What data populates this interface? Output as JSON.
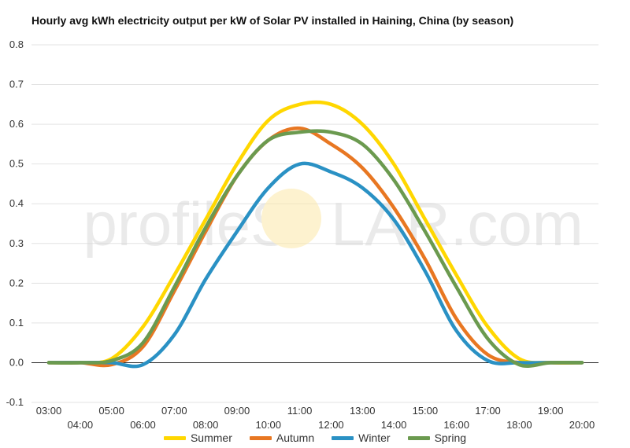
{
  "chart_data": {
    "type": "line",
    "title": "Hourly avg kWh electricity output per kW of Solar PV installed in Haining, China (by season)",
    "xlabel": "",
    "ylabel": "",
    "ylim": [
      -0.1,
      0.8
    ],
    "yticks": [
      "-0.1",
      "0.0",
      "0.1",
      "0.2",
      "0.3",
      "0.4",
      "0.5",
      "0.6",
      "0.7",
      "0.8"
    ],
    "xticks_top": [
      "03:00",
      "05:00",
      "07:00",
      "09:00",
      "11:00",
      "13:00",
      "15:00",
      "17:00",
      "19:00"
    ],
    "xticks_bottom": [
      "04:00",
      "06:00",
      "08:00",
      "10:00",
      "12:00",
      "14:00",
      "16:00",
      "18:00",
      "20:00"
    ],
    "x": [
      "03:00",
      "04:00",
      "05:00",
      "06:00",
      "07:00",
      "08:00",
      "09:00",
      "10:00",
      "11:00",
      "12:00",
      "13:00",
      "14:00",
      "15:00",
      "16:00",
      "17:00",
      "18:00",
      "19:00",
      "20:00"
    ],
    "grid": true,
    "legend_position": "bottom",
    "series": [
      {
        "name": "Summer",
        "color": "#FFD700",
        "values": [
          0.0,
          0.0,
          0.01,
          0.09,
          0.22,
          0.36,
          0.5,
          0.61,
          0.65,
          0.65,
          0.6,
          0.5,
          0.36,
          0.22,
          0.09,
          0.01,
          0.0,
          0.0
        ]
      },
      {
        "name": "Autumn",
        "color": "#E87722",
        "values": [
          0.0,
          0.0,
          -0.005,
          0.04,
          0.18,
          0.33,
          0.47,
          0.56,
          0.59,
          0.55,
          0.49,
          0.39,
          0.26,
          0.11,
          0.02,
          0.0,
          0.0,
          0.0
        ]
      },
      {
        "name": "Winter",
        "color": "#2A91C4",
        "values": [
          0.0,
          0.0,
          0.0,
          -0.005,
          0.07,
          0.21,
          0.33,
          0.44,
          0.5,
          0.48,
          0.44,
          0.36,
          0.23,
          0.08,
          0.005,
          0.0,
          0.0,
          0.0
        ]
      },
      {
        "name": "Spring",
        "color": "#6B9A4F",
        "values": [
          0.0,
          0.0,
          0.005,
          0.05,
          0.19,
          0.34,
          0.47,
          0.56,
          0.58,
          0.58,
          0.55,
          0.46,
          0.33,
          0.19,
          0.06,
          -0.005,
          0.0,
          0.0
        ]
      }
    ]
  },
  "watermark": {
    "text_left": "profileS",
    "text_right": "LAR.com"
  }
}
